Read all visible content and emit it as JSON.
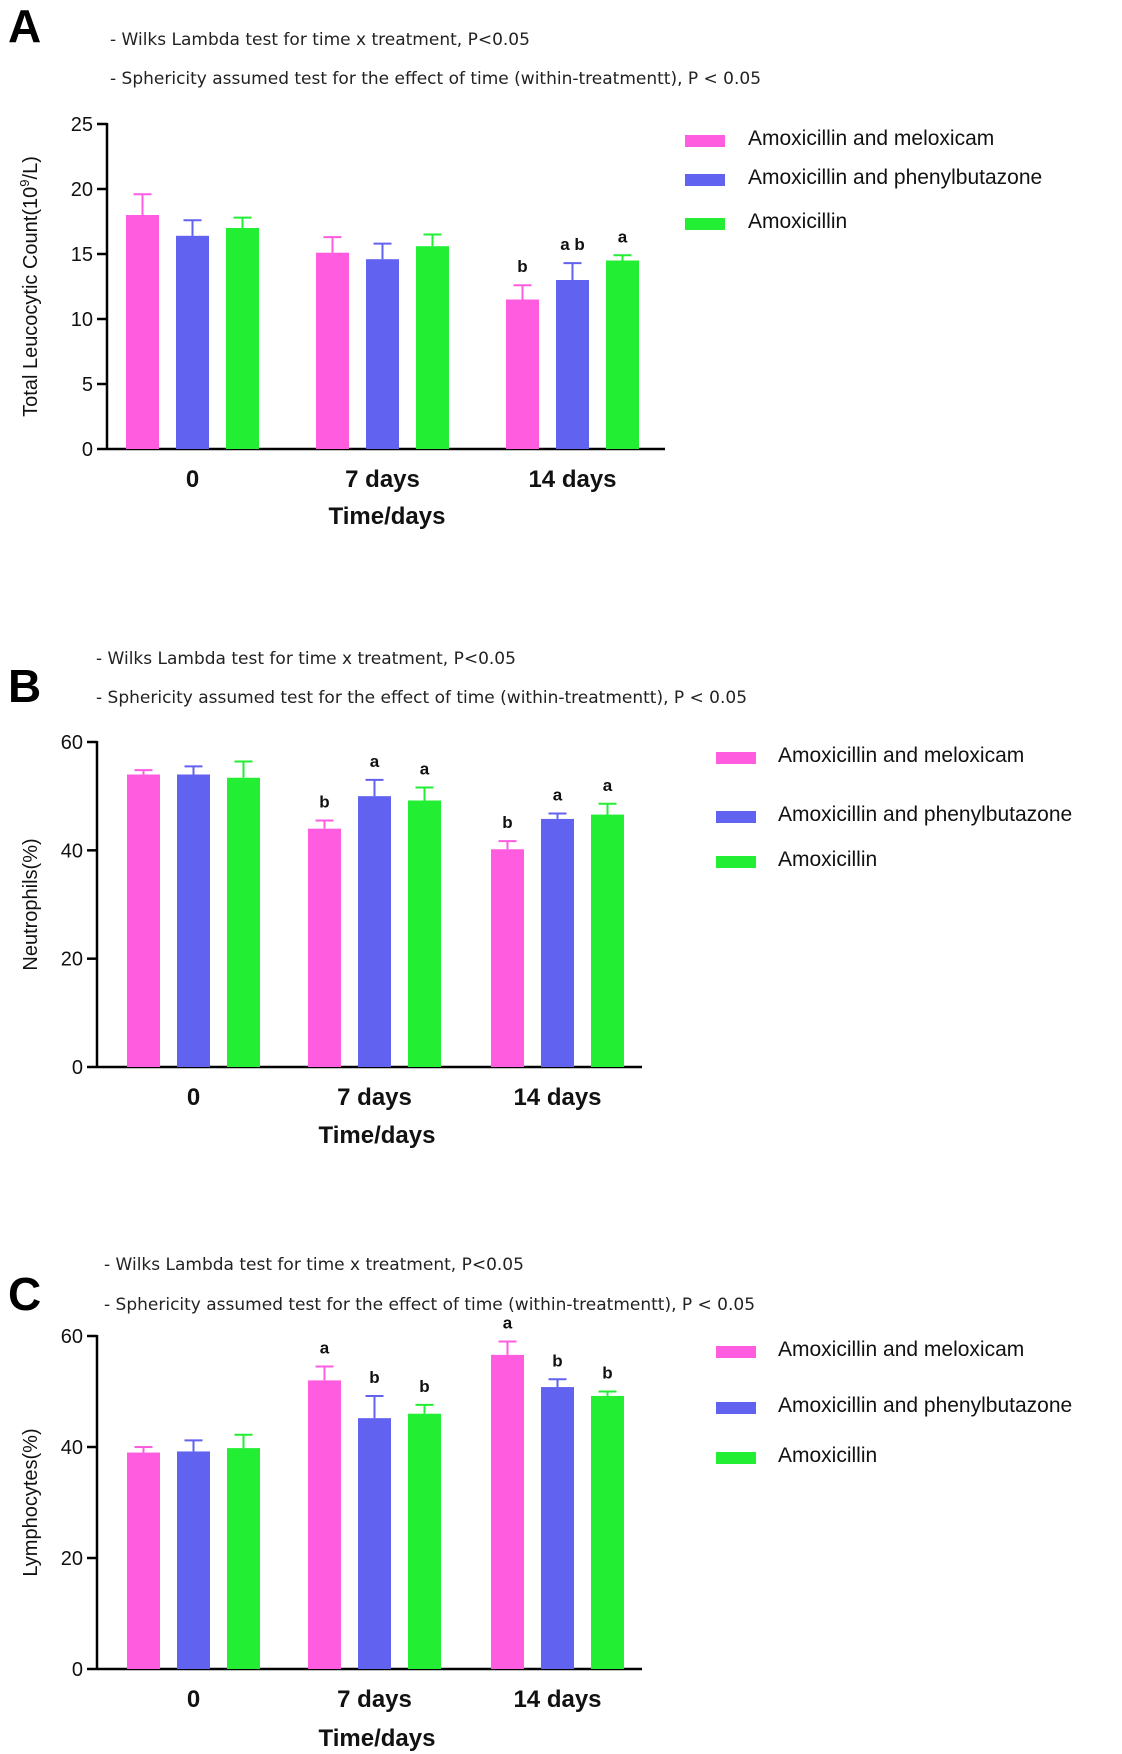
{
  "chart_data": [
    {
      "panel": "A",
      "type": "bar",
      "notes": [
        "- Wilks Lambda test for time x treatment, P<0.05",
        "- Sphericity assumed test for the effect of time (within-treatmentt), P < 0.05"
      ],
      "xlabel": "Time/days",
      "ylabel_main": "Total Leucocytic Count(10",
      "ylabel_sup": "9",
      "ylabel_tail": "/L)",
      "categories": [
        "0",
        "7 days",
        "14 days"
      ],
      "yticks": [
        "0",
        "5",
        "10",
        "15",
        "20",
        "25"
      ],
      "ylim": [
        0,
        25
      ],
      "series": [
        {
          "name": "Amoxicillin and meloxicam",
          "color": "#ff5ce0",
          "values": [
            18.0,
            15.1,
            11.5
          ],
          "errors": [
            1.6,
            1.2,
            1.1
          ],
          "sig": [
            "",
            "",
            "b"
          ]
        },
        {
          "name": "Amoxicillin and phenylbutazone",
          "color": "#6262f0",
          "values": [
            16.4,
            14.6,
            13.0
          ],
          "errors": [
            1.2,
            1.2,
            1.3
          ],
          "sig": [
            "",
            "",
            "a b"
          ]
        },
        {
          "name": "Amoxicillin",
          "color": "#22ee33",
          "values": [
            17.0,
            15.6,
            14.5
          ],
          "errors": [
            0.8,
            0.9,
            0.4
          ],
          "sig": [
            "",
            "",
            "a"
          ]
        }
      ]
    },
    {
      "panel": "B",
      "type": "bar",
      "notes": [
        "- Wilks Lambda test for time x treatment, P<0.05",
        "- Sphericity assumed test for the effect of time (within-treatmentt), P < 0.05"
      ],
      "xlabel": "Time/days",
      "ylabel_main": "Neutrophils(%)",
      "ylabel_sup": "",
      "ylabel_tail": "",
      "categories": [
        "0",
        "7 days",
        "14 days"
      ],
      "yticks": [
        "0",
        "20",
        "40",
        "60"
      ],
      "ylim": [
        0,
        60
      ],
      "series": [
        {
          "name": "Amoxicillin and meloxicam",
          "color": "#ff5ce0",
          "values": [
            54.0,
            44.0,
            40.2
          ],
          "errors": [
            0.8,
            1.5,
            1.5
          ],
          "sig": [
            "",
            "b",
            "b"
          ]
        },
        {
          "name": "Amoxicillin and phenylbutazone",
          "color": "#6262f0",
          "values": [
            54.0,
            50.0,
            45.8
          ],
          "errors": [
            1.5,
            3.0,
            1.0
          ],
          "sig": [
            "",
            "a",
            "a"
          ]
        },
        {
          "name": "Amoxicillin",
          "color": "#22ee33",
          "values": [
            53.4,
            49.2,
            46.6
          ],
          "errors": [
            3.0,
            2.4,
            2.0
          ],
          "sig": [
            "",
            "a",
            "a"
          ]
        }
      ]
    },
    {
      "panel": "C",
      "type": "bar",
      "notes": [
        "- Wilks Lambda test for time x treatment, P<0.05",
        "- Sphericity assumed test for the effect of time (within-treatmentt), P < 0.05"
      ],
      "xlabel": "Time/days",
      "ylabel_main": "Lymphocytes(%)",
      "ylabel_sup": "",
      "ylabel_tail": "",
      "categories": [
        "0",
        "7 days",
        "14 days"
      ],
      "yticks": [
        "0",
        "20",
        "40",
        "60"
      ],
      "ylim": [
        0,
        60
      ],
      "series": [
        {
          "name": "Amoxicillin and meloxicam",
          "color": "#ff5ce0",
          "values": [
            39.0,
            52.0,
            56.6
          ],
          "errors": [
            1.0,
            2.5,
            2.4
          ],
          "sig": [
            "",
            "a",
            "a"
          ]
        },
        {
          "name": "Amoxicillin and phenylbutazone",
          "color": "#6262f0",
          "values": [
            39.2,
            45.2,
            50.8
          ],
          "errors": [
            2.0,
            4.0,
            1.4
          ],
          "sig": [
            "",
            "b",
            "b"
          ]
        },
        {
          "name": "Amoxicillin",
          "color": "#22ee33",
          "values": [
            39.8,
            46.0,
            49.2
          ],
          "errors": [
            2.4,
            1.6,
            0.8
          ],
          "sig": [
            "",
            "b",
            "b"
          ]
        }
      ]
    }
  ]
}
